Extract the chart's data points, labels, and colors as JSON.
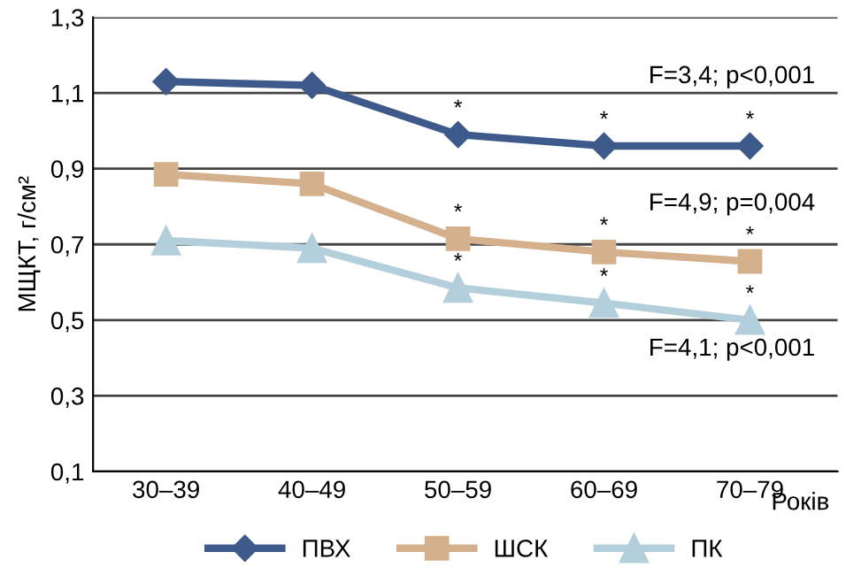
{
  "chart_data": {
    "type": "line",
    "categories": [
      "30–39",
      "40–49",
      "50–59",
      "60–69",
      "70–79"
    ],
    "xlabel": "Років",
    "ylabel": "МЩКТ, г/см²",
    "ylim": [
      0.1,
      1.3
    ],
    "yticks": [
      {
        "value": 0.1,
        "label": "0,1"
      },
      {
        "value": 0.3,
        "label": "0,3"
      },
      {
        "value": 0.5,
        "label": "0,5"
      },
      {
        "value": 0.7,
        "label": "0,7"
      },
      {
        "value": 0.9,
        "label": "0,9"
      },
      {
        "value": 1.1,
        "label": "1,1"
      },
      {
        "value": 1.3,
        "label": "1,3"
      }
    ],
    "grid": "y",
    "legend": "bottom",
    "series": [
      {
        "name": "ПВХ",
        "color": "#3d5a8a",
        "marker": "diamond",
        "values": [
          1.13,
          1.12,
          0.99,
          0.96,
          0.96
        ]
      },
      {
        "name": "ШСК",
        "color": "#d4b08c",
        "marker": "square",
        "values": [
          0.885,
          0.86,
          0.715,
          0.68,
          0.655
        ]
      },
      {
        "name": "ПК",
        "color": "#b4cfdc",
        "marker": "triangle",
        "values": [
          0.71,
          0.69,
          0.585,
          0.545,
          0.5
        ]
      }
    ],
    "annotations": [
      "F=3,4; p<0,001",
      "F=4,9; p=0,004",
      "F=4,1; p<0,001",
      {
        "text": "*",
        "x": "50–59",
        "y": 0.99
      },
      {
        "text": "*",
        "x": "60–69",
        "y": 0.96
      },
      {
        "text": "*",
        "x": "70–79",
        "y": 0.96
      },
      {
        "text": "*",
        "x": "50–59",
        "y": 0.715
      },
      {
        "text": "*",
        "x": "60–69",
        "y": 0.68
      },
      {
        "text": "*",
        "x": "70–79",
        "y": 0.655
      },
      {
        "text": "*",
        "x": "50–59",
        "y": 0.585
      },
      {
        "text": "*",
        "x": "60–69",
        "y": 0.545
      },
      {
        "text": "*",
        "x": "70–79",
        "y": 0.5
      }
    ]
  }
}
